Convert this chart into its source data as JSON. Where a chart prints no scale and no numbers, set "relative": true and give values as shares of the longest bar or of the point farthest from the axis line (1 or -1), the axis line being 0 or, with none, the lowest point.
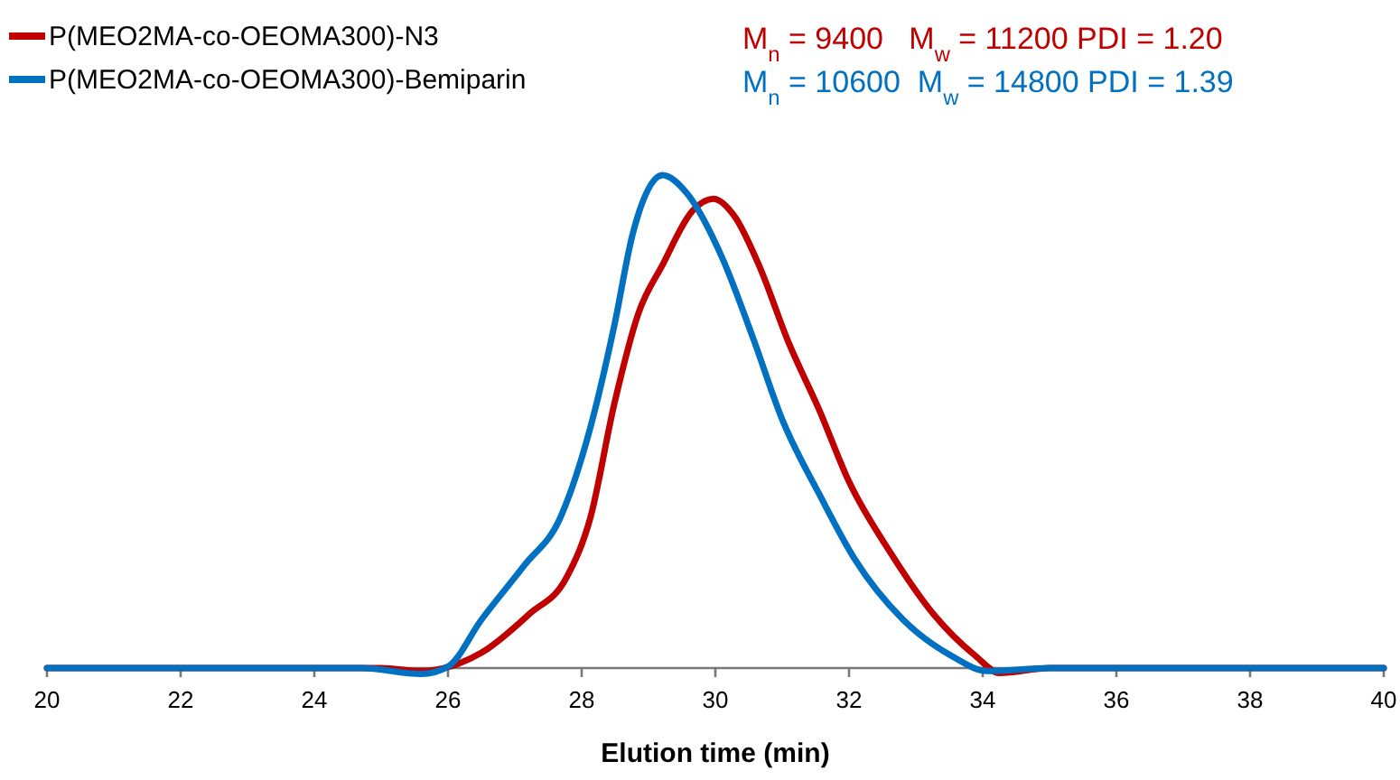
{
  "chart_data": {
    "type": "line",
    "xlabel": "Elution time (min)",
    "relative": true,
    "xlim": [
      20,
      40
    ],
    "xticks": [
      20,
      22,
      24,
      26,
      28,
      30,
      32,
      34,
      36,
      38,
      40
    ],
    "legend": "top left",
    "marker": "none",
    "line_style": "solid",
    "annotations": [
      "M$_{n}$ = 9400   M$_{w}$ = 11200 PDI = 1.20",
      "M$_{n}$ = 10600  M$_{w}$ = 14800 PDI = 1.39"
    ],
    "series": [
      {
        "name": "P(MEO2MA-co-OEOMA300)-N3",
        "color": "#c00000",
        "x": [
          20,
          25,
          25.6,
          26.05,
          26.5,
          27.22,
          27.77,
          28.13,
          28.49,
          28.85,
          29.21,
          29.66,
          29.97,
          30.29,
          30.65,
          31.1,
          31.55,
          32.0,
          32.63,
          33.26,
          33.89,
          34.25,
          35,
          40
        ],
        "values": [
          0,
          0,
          -0.006,
          0.004,
          0.031,
          0.11,
          0.183,
          0.305,
          0.537,
          0.72,
          0.818,
          0.928,
          0.952,
          0.916,
          0.818,
          0.659,
          0.525,
          0.378,
          0.232,
          0.11,
          0.025,
          -0.01,
          0,
          0
        ]
      },
      {
        "name": "P(MEO2MA-co-OEOMA300)-Bemiparin",
        "color": "#0070c0",
        "x": [
          20,
          24.7,
          25.6,
          26.0,
          26.5,
          27.14,
          27.68,
          28.13,
          28.49,
          28.76,
          29.21,
          29.57,
          30.11,
          30.56,
          31.01,
          31.55,
          32.09,
          32.81,
          33.53,
          34.07,
          35,
          40
        ],
        "values": [
          0,
          0,
          -0.012,
          0.003,
          0.098,
          0.208,
          0.305,
          0.488,
          0.696,
          0.879,
          1,
          0.964,
          0.83,
          0.671,
          0.501,
          0.354,
          0.22,
          0.098,
          0.025,
          -0.006,
          0,
          0
        ]
      }
    ]
  }
}
